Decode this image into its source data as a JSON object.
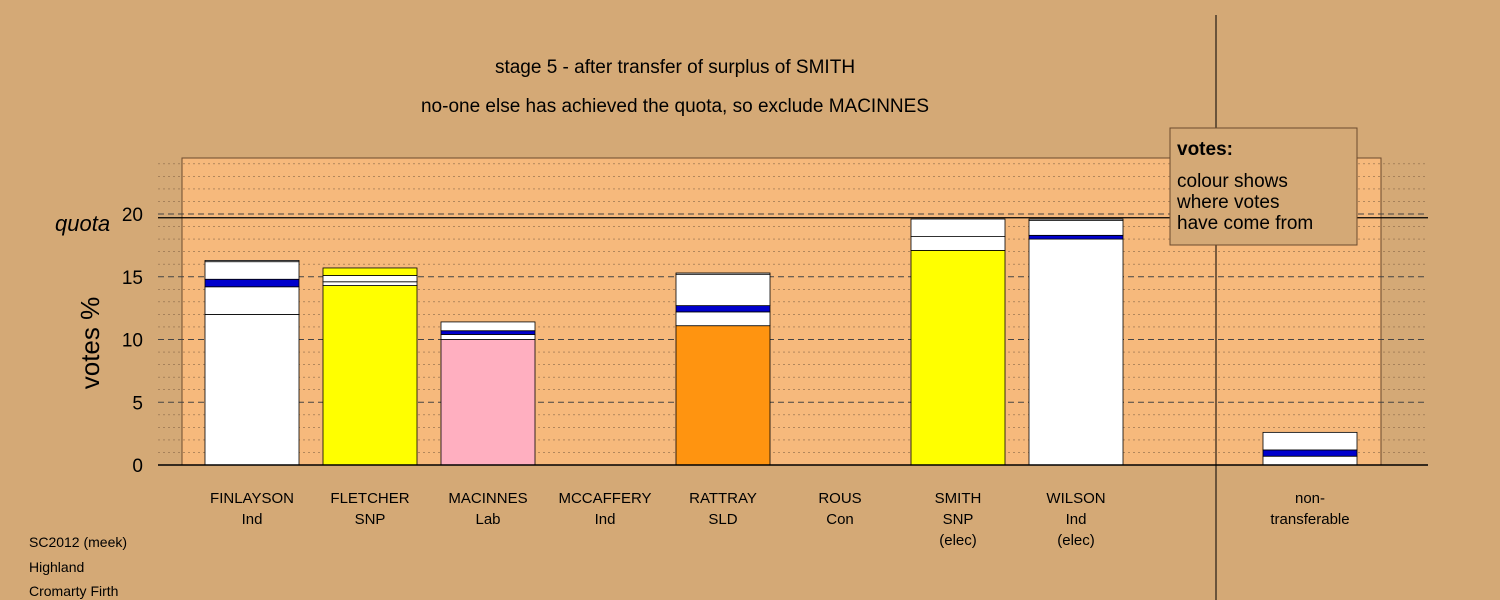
{
  "chart_data": {
    "type": "bar",
    "title": "stage 5 - after transfer of surplus of SMITH",
    "subtitle": "no-one else has achieved the quota, so exclude MACINNES",
    "ylabel": "votes %",
    "ylim": [
      0,
      24
    ],
    "yticks": [
      0,
      5,
      10,
      15,
      20
    ],
    "quota_label": "quota",
    "quota": 19.7,
    "grid": true,
    "legend": {
      "title": "votes:",
      "lines": [
        "colour shows",
        "where votes",
        "have come from"
      ],
      "position": "top-right"
    },
    "candidates": [
      {
        "name": "FINLAYSON",
        "party": "Ind",
        "note": "",
        "segments": [
          {
            "value": 12.0,
            "color": "#ffffff"
          },
          {
            "value": 2.2,
            "color": "#ffffff"
          },
          {
            "value": 0.6,
            "color": "#0000cc"
          },
          {
            "value": 1.4,
            "color": "#ffffff"
          },
          {
            "value": 0.1,
            "color": "#ffffff"
          }
        ]
      },
      {
        "name": "FLETCHER",
        "party": "SNP",
        "note": "",
        "segments": [
          {
            "value": 14.3,
            "color": "#ffff00"
          },
          {
            "value": 0.3,
            "color": "#ffffff"
          },
          {
            "value": 0.5,
            "color": "#ffffff"
          },
          {
            "value": 0.6,
            "color": "#ffff00"
          }
        ]
      },
      {
        "name": "MACINNES",
        "party": "Lab",
        "note": "",
        "segments": [
          {
            "value": 10.0,
            "color": "#ffafc0"
          },
          {
            "value": 0.4,
            "color": "#ffffff"
          },
          {
            "value": 0.3,
            "color": "#0000cc"
          },
          {
            "value": 0.7,
            "color": "#ffffff"
          }
        ]
      },
      {
        "name": "MCCAFFERY",
        "party": "Ind",
        "note": "",
        "segments": []
      },
      {
        "name": "RATTRAY",
        "party": "SLD",
        "note": "",
        "segments": [
          {
            "value": 11.1,
            "color": "#ff9410"
          },
          {
            "value": 1.1,
            "color": "#ffffff"
          },
          {
            "value": 0.5,
            "color": "#0000cc"
          },
          {
            "value": 2.5,
            "color": "#ffffff"
          },
          {
            "value": 0.1,
            "color": "#ffffff"
          }
        ]
      },
      {
        "name": "ROUS",
        "party": "Con",
        "note": "",
        "segments": []
      },
      {
        "name": "SMITH",
        "party": "SNP",
        "note": "(elec)",
        "segments": [
          {
            "value": 17.1,
            "color": "#ffff00"
          },
          {
            "value": 1.1,
            "color": "#ffffff"
          },
          {
            "value": 1.4,
            "color": "#ffffff"
          }
        ]
      },
      {
        "name": "WILSON",
        "party": "Ind",
        "note": "(elec)",
        "segments": [
          {
            "value": 18.0,
            "color": "#ffffff"
          },
          {
            "value": 0.3,
            "color": "#0000cc"
          },
          {
            "value": 1.2,
            "color": "#ffffff"
          },
          {
            "value": 0.1,
            "color": "#ffffff"
          }
        ]
      }
    ],
    "nontransferable": {
      "label_lines": [
        "non-",
        "transferable"
      ],
      "segments": [
        {
          "value": 0.7,
          "color": "#ffffff"
        },
        {
          "value": 0.5,
          "color": "#0000cc"
        },
        {
          "value": 1.4,
          "color": "#ffffff"
        }
      ]
    }
  },
  "footer": {
    "lines": [
      "SC2012 (meek)",
      "Highland",
      "Cromarty Firth"
    ]
  },
  "colors": {
    "page_background": "#d4a976",
    "plot_background": "#f6b97c",
    "legend_background": "#d4a976"
  }
}
